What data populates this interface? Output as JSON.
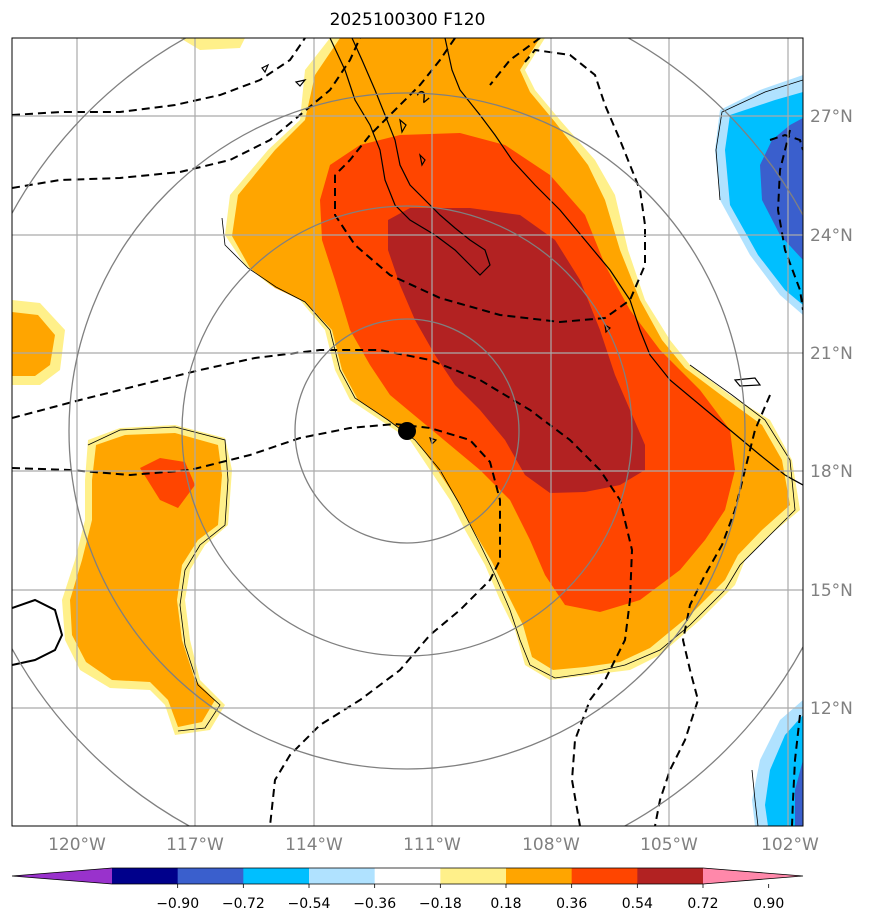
{
  "title": "2025100300 F120",
  "lon_labels": [
    "120°W",
    "117°W",
    "114°W",
    "111°W",
    "108°W",
    "105°W",
    "102°W"
  ],
  "lat_labels": [
    "27°N",
    "24°N",
    "21°N",
    "18°N",
    "15°N",
    "12°N"
  ],
  "contour_labels": [
    "2"
  ],
  "colorbar": {
    "ticks": [
      "−0.90",
      "−0.72",
      "−0.54",
      "−0.36",
      "−0.18",
      "0.18",
      "0.36",
      "0.54",
      "0.72",
      "0.90"
    ],
    "colors": [
      "#9932cc",
      "#00008b",
      "#3a5fcd",
      "#00bfff",
      "#b0e2ff",
      "#ffffff",
      "#fff08a",
      "#ffa500",
      "#ff4500",
      "#b22222",
      "#ff88aa"
    ]
  },
  "fill_colors": {
    "light_yellow": "#fff08a",
    "orange": "#ffa500",
    "red_orange": "#ff4500",
    "dark_red": "#b22222",
    "light_blue": "#b0e2ff",
    "deep_sky": "#00bfff",
    "royal_blue": "#3a5fcd"
  }
}
